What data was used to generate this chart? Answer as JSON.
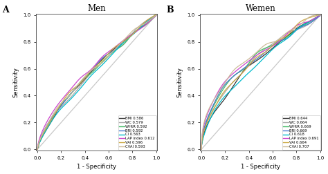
{
  "panel_A": {
    "title": "Men",
    "label": "A",
    "curves": [
      {
        "name": "BMI 0.586",
        "color": "#333333",
        "auc": 0.586,
        "seed": 101
      },
      {
        "name": "WC 0.579",
        "color": "#aaaaaa",
        "auc": 0.579,
        "seed": 102
      },
      {
        "name": "WHtR 0.592",
        "color": "#44bb66",
        "auc": 0.592,
        "seed": 103
      },
      {
        "name": "BRI 0.592",
        "color": "#4477cc",
        "auc": 0.592,
        "seed": 104
      },
      {
        "name": "CI 0.563",
        "color": "#00bbcc",
        "auc": 0.563,
        "seed": 105
      },
      {
        "name": "LAP index 0.612",
        "color": "#cc44cc",
        "auc": 0.612,
        "seed": 106
      },
      {
        "name": "VAI 0.596",
        "color": "#ccaa44",
        "auc": 0.596,
        "seed": 107
      },
      {
        "name": "CVAI 0.593",
        "color": "#ccbb99",
        "auc": 0.593,
        "seed": 108
      }
    ]
  },
  "panel_B": {
    "title": "Wemen",
    "label": "B",
    "curves": [
      {
        "name": "BMI 0.644",
        "color": "#333333",
        "auc": 0.644,
        "seed": 201
      },
      {
        "name": "WC 0.664",
        "color": "#aaaaaa",
        "auc": 0.664,
        "seed": 202
      },
      {
        "name": "WHtR 0.669",
        "color": "#44bb66",
        "auc": 0.669,
        "seed": 203
      },
      {
        "name": "BRI 0.669",
        "color": "#4477cc",
        "auc": 0.669,
        "seed": 204
      },
      {
        "name": "CI 0.618",
        "color": "#00bbcc",
        "auc": 0.618,
        "seed": 205
      },
      {
        "name": "LAP index 0.691",
        "color": "#cc44cc",
        "auc": 0.691,
        "seed": 206
      },
      {
        "name": "VAI 0.664",
        "color": "#ccaa44",
        "auc": 0.664,
        "seed": 207
      },
      {
        "name": "CVAI 0.707",
        "color": "#ccbb99",
        "auc": 0.707,
        "seed": 208
      }
    ]
  },
  "xlabel": "1 - Specificity",
  "ylabel": "Sensitivity",
  "diagonal_color": "#c8c8c8",
  "bg_color": "#ffffff",
  "tick_labels": [
    "0.0",
    "0.2",
    "0.4",
    "0.6",
    "0.8",
    "1.0"
  ],
  "tick_vals": [
    0.0,
    0.2,
    0.4,
    0.6,
    0.8,
    1.0
  ],
  "noise_scale_A": 0.012,
  "noise_scale_B": 0.018
}
